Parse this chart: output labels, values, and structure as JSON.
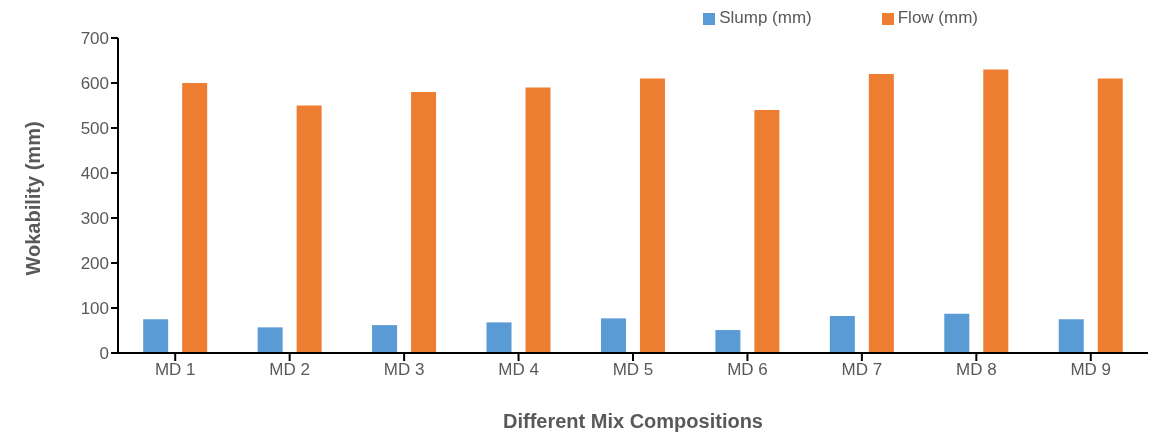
{
  "chart_data": {
    "type": "bar",
    "xlabel": "Different Mix Compositions",
    "ylabel": "Wokability (mm)",
    "categories": [
      "MD 1",
      "MD 2",
      "MD 3",
      "MD 4",
      "MD 5",
      "MD 6",
      "MD 7",
      "MD 8",
      "MD 9"
    ],
    "series": [
      {
        "name": "Slump (mm)",
        "color": "#5b9bd5",
        "values": [
          75,
          57,
          62,
          68,
          77,
          51,
          82,
          87,
          75
        ]
      },
      {
        "name": "Flow (mm)",
        "color": "#ed7d31",
        "values": [
          600,
          550,
          580,
          590,
          610,
          540,
          620,
          630,
          610
        ]
      }
    ],
    "ylim": [
      0,
      700
    ],
    "yticks": [
      0,
      100,
      200,
      300,
      400,
      500,
      600,
      700
    ],
    "grid": false,
    "legend": "top right"
  }
}
